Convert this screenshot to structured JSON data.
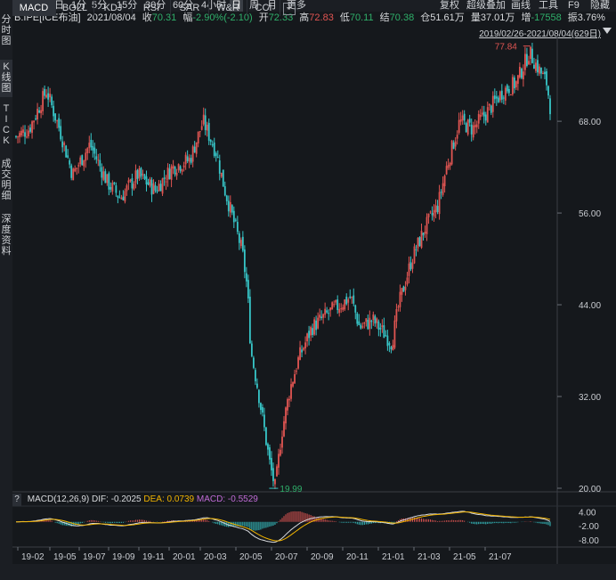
{
  "topbar": {
    "periods": [
      "分时",
      "多日",
      "1分",
      "5分",
      "15分",
      "30分",
      "60分",
      "4小时",
      "日",
      "周",
      "月",
      "更多"
    ],
    "active_period": "日",
    "right_items": [
      "复权",
      "超级叠加",
      "画线",
      "工具",
      "F9",
      "隐藏"
    ]
  },
  "info": {
    "symbol": "B.IPE[ICE布油]",
    "date": "2021/08/04",
    "close_label": "收",
    "close": "70.31",
    "change_label": "幅",
    "change": "-2.90%(-2.10)",
    "open_label": "开",
    "open": "72.33",
    "high_label": "高",
    "high": "72.83",
    "low_label": "低",
    "low": "70.11",
    "settle_label": "结",
    "settle": "70.38",
    "oi_label": "仓",
    "oi": "51.61万",
    "volume_label": "量",
    "volume": "37.01万",
    "increase_label": "增",
    "increase": "-17558",
    "amplitude_label": "振",
    "amplitude": "3.76%"
  },
  "left_tabs": [
    "分时图",
    "K线图",
    "TICK",
    "成交明细",
    "深度资料"
  ],
  "range_text": "2019/02/26-2021/08/04(629日)",
  "macd": {
    "name": "MACD(12,26,9)",
    "dif_label": "DIF:",
    "dif": "-0.2025",
    "dea_label": "DEA:",
    "dea": "0.0739",
    "macd_label": "MACD:",
    "macd": "-0.5529",
    "yaxis": [
      "4.00",
      "-2.00",
      "-8.00"
    ],
    "help_label": "?"
  },
  "bottom_tabs": [
    "MACD",
    "BOLL",
    "KDJ",
    "RSI",
    "SAR",
    "W&R",
    "CCI"
  ],
  "bottom_plus": "+",
  "colors": {
    "up": "#e05552",
    "down": "#37c6c8",
    "dif": "#d8dadd",
    "dea": "#f2b400"
  },
  "chart_data": {
    "type": "candlestick",
    "yaxis_ticks": [
      68.0,
      56.0,
      44.0,
      32.0,
      20.0
    ],
    "ylim": [
      20,
      78.5
    ],
    "xaxis_ticks": [
      "19-02",
      "19-05",
      "19-07",
      "19-09",
      "19-11",
      "20-01",
      "20-03",
      "20-05",
      "20-07",
      "20-09",
      "20-11",
      "21-01",
      "21-03",
      "21-05",
      "21-07"
    ],
    "annotations": {
      "max": "77.84",
      "min": "19.99"
    },
    "series_path": [
      [
        0,
        66
      ],
      [
        15,
        67
      ],
      [
        35,
        72
      ],
      [
        50,
        67
      ],
      [
        65,
        61
      ],
      [
        85,
        65
      ],
      [
        105,
        60
      ],
      [
        120,
        58
      ],
      [
        140,
        61
      ],
      [
        160,
        59
      ],
      [
        180,
        62
      ],
      [
        200,
        63
      ],
      [
        215,
        68
      ],
      [
        230,
        64
      ],
      [
        240,
        59
      ],
      [
        250,
        55
      ],
      [
        260,
        51
      ],
      [
        266,
        46
      ],
      [
        270,
        38
      ],
      [
        278,
        33
      ],
      [
        285,
        28
      ],
      [
        292,
        23
      ],
      [
        298,
        20
      ],
      [
        305,
        27
      ],
      [
        315,
        33
      ],
      [
        325,
        37
      ],
      [
        340,
        41
      ],
      [
        360,
        43
      ],
      [
        385,
        45
      ],
      [
        395,
        41
      ],
      [
        410,
        42
      ],
      [
        425,
        40
      ],
      [
        432,
        39
      ],
      [
        440,
        44
      ],
      [
        455,
        50
      ],
      [
        470,
        54
      ],
      [
        485,
        57
      ],
      [
        495,
        62
      ],
      [
        510,
        68
      ],
      [
        525,
        67
      ],
      [
        540,
        69
      ],
      [
        560,
        72
      ],
      [
        575,
        73
      ],
      [
        590,
        77
      ],
      [
        600,
        75
      ],
      [
        610,
        73
      ],
      [
        614,
        70
      ]
    ]
  }
}
